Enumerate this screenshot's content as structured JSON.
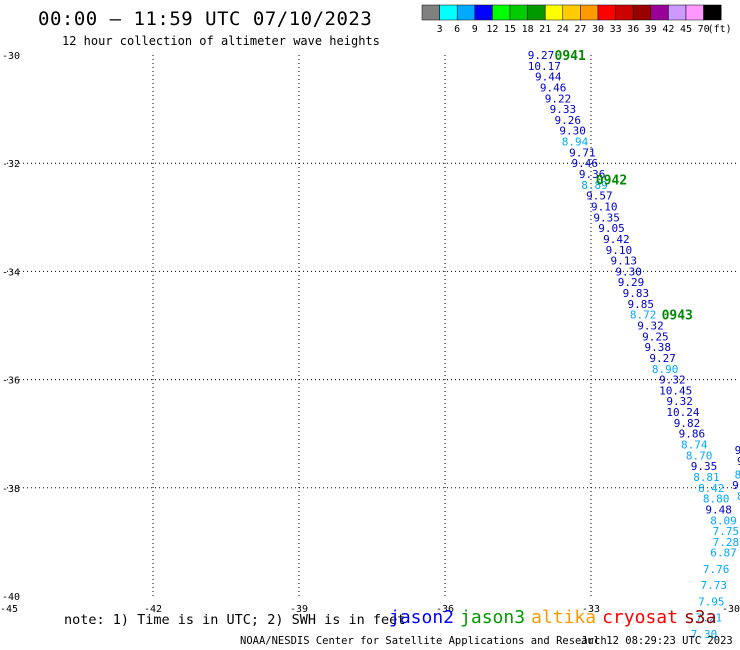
{
  "header": {
    "title": "00:00 – 11:59 UTC 07/10/2023",
    "subtitle": "12 hour collection of altimeter wave heights"
  },
  "legend": {
    "unit": "(ft)",
    "colors": [
      "#808080",
      "#00ffff",
      "#00aaff",
      "#0000ff",
      "#00ff00",
      "#00cc00",
      "#009900",
      "#ffff00",
      "#ffcc00",
      "#ff9900",
      "#ff0000",
      "#cc0000",
      "#990000",
      "#990099",
      "#cc99ff",
      "#ff99ff",
      "#000000"
    ],
    "labels": [
      "3",
      "6",
      "9",
      "12",
      "15",
      "18",
      "21",
      "24",
      "27",
      "30",
      "33",
      "36",
      "39",
      "42",
      "45",
      "70"
    ]
  },
  "axes": {
    "lat_labels": [
      "-30",
      "-32",
      "-34",
      "-36",
      "-38",
      "-40"
    ],
    "lon_labels": [
      "-45",
      "-42",
      "-39",
      "-36",
      "-33",
      "-30"
    ]
  },
  "pass_labels": [
    {
      "text": "0941",
      "lon": -33.75,
      "lat": -30.0
    },
    {
      "text": "0942",
      "lon": -32.9,
      "lat": -32.3
    },
    {
      "text": "0943",
      "lon": -31.55,
      "lat": -34.8
    }
  ],
  "wave_heights": [
    {
      "v": "9.27",
      "lon": -34.3,
      "lat": -30.0,
      "c": "dark"
    },
    {
      "v": "10.17",
      "lon": -34.3,
      "lat": -30.2,
      "c": "dark"
    },
    {
      "v": "9.44",
      "lon": -34.15,
      "lat": -30.4,
      "c": "dark"
    },
    {
      "v": "9.46",
      "lon": -34.05,
      "lat": -30.6,
      "c": "dark"
    },
    {
      "v": "9.22",
      "lon": -33.95,
      "lat": -30.8,
      "c": "dark"
    },
    {
      "v": "9.33",
      "lon": -33.85,
      "lat": -31.0,
      "c": "dark"
    },
    {
      "v": "9.26",
      "lon": -33.75,
      "lat": -31.2,
      "c": "dark"
    },
    {
      "v": "9.30",
      "lon": -33.65,
      "lat": -31.4,
      "c": "dark"
    },
    {
      "v": "8.94",
      "lon": -33.6,
      "lat": -31.6,
      "c": "light"
    },
    {
      "v": "9.71",
      "lon": -33.45,
      "lat": -31.8,
      "c": "dark"
    },
    {
      "v": "9.46",
      "lon": -33.4,
      "lat": -32.0,
      "c": "dark"
    },
    {
      "v": "9.36",
      "lon": -33.25,
      "lat": -32.2,
      "c": "dark"
    },
    {
      "v": "8.89",
      "lon": -33.2,
      "lat": -32.4,
      "c": "light"
    },
    {
      "v": "9.57",
      "lon": -33.1,
      "lat": -32.6,
      "c": "dark"
    },
    {
      "v": "9.10",
      "lon": -33.0,
      "lat": -32.8,
      "c": "dark"
    },
    {
      "v": "9.35",
      "lon": -32.95,
      "lat": -33.0,
      "c": "dark"
    },
    {
      "v": "9.05",
      "lon": -32.85,
      "lat": -33.2,
      "c": "dark"
    },
    {
      "v": "9.42",
      "lon": -32.75,
      "lat": -33.4,
      "c": "dark"
    },
    {
      "v": "9.10",
      "lon": -32.7,
      "lat": -33.6,
      "c": "dark"
    },
    {
      "v": "9.13",
      "lon": -32.6,
      "lat": -33.8,
      "c": "dark"
    },
    {
      "v": "9.30",
      "lon": -32.5,
      "lat": -34.0,
      "c": "dark"
    },
    {
      "v": "9.29",
      "lon": -32.45,
      "lat": -34.2,
      "c": "dark"
    },
    {
      "v": "9.83",
      "lon": -32.35,
      "lat": -34.4,
      "c": "dark"
    },
    {
      "v": "9.85",
      "lon": -32.25,
      "lat": -34.6,
      "c": "dark"
    },
    {
      "v": "8.72",
      "lon": -32.2,
      "lat": -34.8,
      "c": "light"
    },
    {
      "v": "9.32",
      "lon": -32.05,
      "lat": -35.0,
      "c": "dark"
    },
    {
      "v": "9.25",
      "lon": -31.95,
      "lat": -35.2,
      "c": "dark"
    },
    {
      "v": "9.38",
      "lon": -31.9,
      "lat": -35.4,
      "c": "dark"
    },
    {
      "v": "9.27",
      "lon": -31.8,
      "lat": -35.6,
      "c": "dark"
    },
    {
      "v": "8.90",
      "lon": -31.75,
      "lat": -35.8,
      "c": "light"
    },
    {
      "v": "9.32",
      "lon": -31.6,
      "lat": -36.0,
      "c": "dark"
    },
    {
      "v": "10.45",
      "lon": -31.6,
      "lat": -36.2,
      "c": "dark"
    },
    {
      "v": "9.32",
      "lon": -31.45,
      "lat": -36.4,
      "c": "dark"
    },
    {
      "v": "10.24",
      "lon": -31.45,
      "lat": -36.6,
      "c": "dark"
    },
    {
      "v": "9.82",
      "lon": -31.3,
      "lat": -36.8,
      "c": "dark"
    },
    {
      "v": "9.86",
      "lon": -31.2,
      "lat": -37.0,
      "c": "dark"
    },
    {
      "v": "8.74",
      "lon": -31.15,
      "lat": -37.2,
      "c": "light"
    },
    {
      "v": "8.70",
      "lon": -31.05,
      "lat": -37.4,
      "c": "light"
    },
    {
      "v": "9.35",
      "lon": -30.95,
      "lat": -37.6,
      "c": "dark"
    },
    {
      "v": "8.81",
      "lon": -30.9,
      "lat": -37.8,
      "c": "light"
    },
    {
      "v": "8.42",
      "lon": -30.8,
      "lat": -38.0,
      "c": "light"
    },
    {
      "v": "8.80",
      "lon": -30.7,
      "lat": -38.2,
      "c": "light"
    },
    {
      "v": "9.48",
      "lon": -30.65,
      "lat": -38.4,
      "c": "dark"
    },
    {
      "v": "8.09",
      "lon": -30.55,
      "lat": -38.6,
      "c": "light"
    },
    {
      "v": "7.75",
      "lon": -30.5,
      "lat": -38.8,
      "c": "light"
    },
    {
      "v": "7.28",
      "lon": -30.5,
      "lat": -39.0,
      "c": "light"
    },
    {
      "v": "6.87",
      "lon": -30.55,
      "lat": -39.2,
      "c": "light"
    },
    {
      "v": "7.76",
      "lon": -30.7,
      "lat": -39.5,
      "c": "light"
    },
    {
      "v": "7.73",
      "lon": -30.75,
      "lat": -39.8,
      "c": "light"
    },
    {
      "v": "7.95",
      "lon": -30.8,
      "lat": -40.1,
      "c": "light"
    },
    {
      "v": "7.21",
      "lon": -30.85,
      "lat": -40.4,
      "c": "light"
    },
    {
      "v": "7.30",
      "lon": -30.95,
      "lat": -40.7,
      "c": "light"
    }
  ],
  "edge_fragments": [
    {
      "v": "9.",
      "lon": -30.05,
      "lat": -37.3,
      "c": "dark"
    },
    {
      "v": "9",
      "lon": -30.0,
      "lat": -37.5,
      "c": "dark"
    },
    {
      "v": "8.",
      "lon": -30.05,
      "lat": -37.75,
      "c": "light"
    },
    {
      "v": "9.",
      "lon": -30.1,
      "lat": -37.95,
      "c": "dark"
    },
    {
      "v": "8",
      "lon": -30.0,
      "lat": -38.15,
      "c": "light"
    }
  ],
  "colors": {
    "dark": "#0000cc",
    "light": "#00aaff",
    "pass": "#008800"
  },
  "footer": {
    "note": "note: 1) Time is in UTC; 2) SWH is in feet",
    "satellites": [
      {
        "name": "jason2",
        "color": "#0000ff"
      },
      {
        "name": "jason3",
        "color": "#009900"
      },
      {
        "name": "altika",
        "color": "#ff9900"
      },
      {
        "name": "cryosat",
        "color": "#ff0000"
      },
      {
        "name": "s3a",
        "color": "#990000"
      }
    ],
    "credit": "NOAA/NESDIS Center for Satellite Applications and Research",
    "updated": "Jul 12 08:29:23 UTC 2023"
  }
}
